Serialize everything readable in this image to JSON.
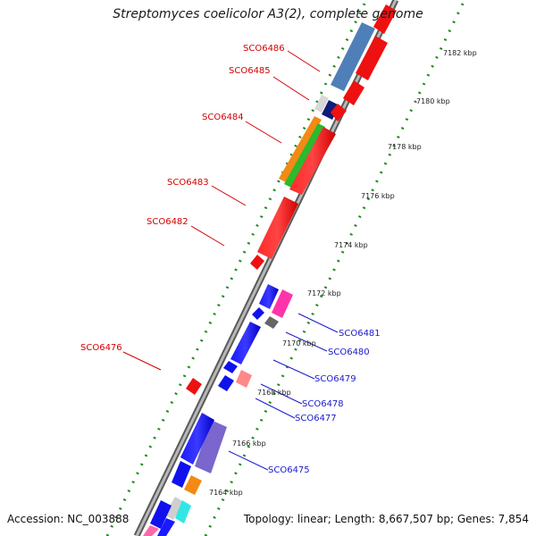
{
  "title": "Streptomyces coelicolor A3(2), complete genome",
  "footer": {
    "accession": "Accession: NC_003888",
    "topology": "Topology: linear; Length: 8,667,507 bp; Genes: 7,854"
  },
  "colors": {
    "top_strand_label": "#d40000",
    "bottom_strand_label": "#1a1acc",
    "ruler_dash": "#1f8a1f",
    "backbone": "#8a8a8a"
  },
  "ruler": {
    "ticks": [
      "7164 kbp",
      "7166 kbp",
      "7168 kbp",
      "7170 kbp",
      "7172 kbp",
      "7174 kbp",
      "7176 kbp",
      "7178 kbp",
      "7180 kbp",
      "7182 kbp"
    ]
  },
  "genes_top": [
    {
      "label": "SCO6486",
      "color": "#4f7fb8"
    },
    {
      "label": "SCO6485",
      "color": "#111b7a"
    },
    {
      "label": "SCO6484",
      "color": "#f28a14"
    },
    {
      "label": "SCO6483",
      "color": "#ee1111"
    },
    {
      "label": "SCO6482",
      "color": "#ee1111"
    },
    {
      "label": "SCO6476",
      "color": "#ee1111"
    }
  ],
  "genes_bottom": [
    {
      "label": "SCO6481",
      "color": "#ff33aa"
    },
    {
      "label": "SCO6480",
      "color": "#666666"
    },
    {
      "label": "SCO6479",
      "color": "#1111ee"
    },
    {
      "label": "SCO6478",
      "color": "#1111ee"
    },
    {
      "label": "SCO6477",
      "color": "#ff8888"
    },
    {
      "label": "SCO6475",
      "color": "#7a66cc"
    }
  ]
}
